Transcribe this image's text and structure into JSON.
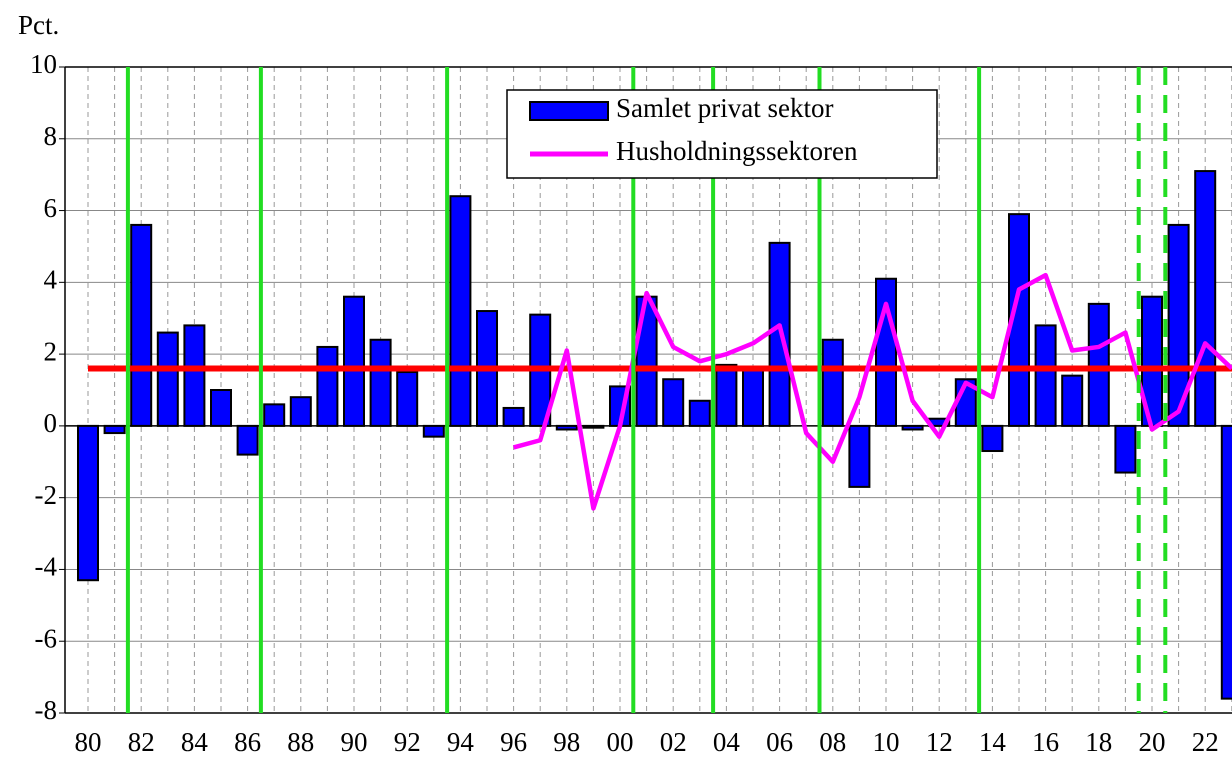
{
  "chart_data": {
    "type": "bar",
    "y_label": "Pct.",
    "categories": [
      "80",
      null,
      "82",
      null,
      "84",
      null,
      "86",
      null,
      "88",
      null,
      "90",
      null,
      "92",
      null,
      "94",
      null,
      "96",
      null,
      "98",
      null,
      "00",
      null,
      "02",
      null,
      "04",
      null,
      "06",
      null,
      "08",
      null,
      "10",
      null,
      "12",
      null,
      "14",
      null,
      "16",
      null,
      "18",
      null,
      "20",
      null,
      "22",
      null
    ],
    "series": [
      {
        "name": "Samlet privat sektor",
        "type": "bar",
        "color": "#0000ff",
        "values": [
          -4.3,
          -0.2,
          5.6,
          2.6,
          2.8,
          1.0,
          -0.8,
          0.6,
          0.8,
          2.2,
          3.6,
          2.4,
          1.5,
          -0.3,
          6.4,
          3.2,
          0.5,
          3.1,
          -0.1,
          -0.05,
          1.1,
          3.6,
          1.3,
          0.7,
          1.7,
          1.6,
          5.1,
          null,
          2.4,
          -1.7,
          4.1,
          -0.1,
          0.2,
          1.3,
          -0.7,
          5.9,
          2.8,
          1.4,
          3.4,
          -1.3,
          3.6,
          5.6,
          7.1,
          -7.6
        ]
      },
      {
        "name": "Husholdningssektoren",
        "type": "line",
        "color": "#ff00ff",
        "values": [
          null,
          null,
          null,
          null,
          null,
          null,
          null,
          null,
          null,
          null,
          null,
          null,
          null,
          null,
          null,
          null,
          -0.6,
          -0.4,
          2.1,
          -2.3,
          0.0,
          3.7,
          2.2,
          1.8,
          2.0,
          2.3,
          2.8,
          -0.2,
          -1.0,
          0.8,
          3.4,
          0.7,
          -0.3,
          1.2,
          0.8,
          3.8,
          4.2,
          2.1,
          2.2,
          2.6,
          -0.1,
          0.4,
          2.3,
          1.6
        ]
      }
    ],
    "hline": {
      "value": 1.6,
      "color": "#ff0000"
    },
    "vlines": [
      1.5,
      6.5,
      13.5,
      20.5,
      23.5,
      27.5,
      33.5
    ],
    "vlines_dashed": [
      39.5,
      40.5
    ],
    "vline_color": "#22dd22",
    "ylim": [
      -8,
      10
    ],
    "yticks": [
      -8,
      -6,
      -4,
      -2,
      0,
      2,
      4,
      6,
      8,
      10
    ],
    "grid": true
  }
}
